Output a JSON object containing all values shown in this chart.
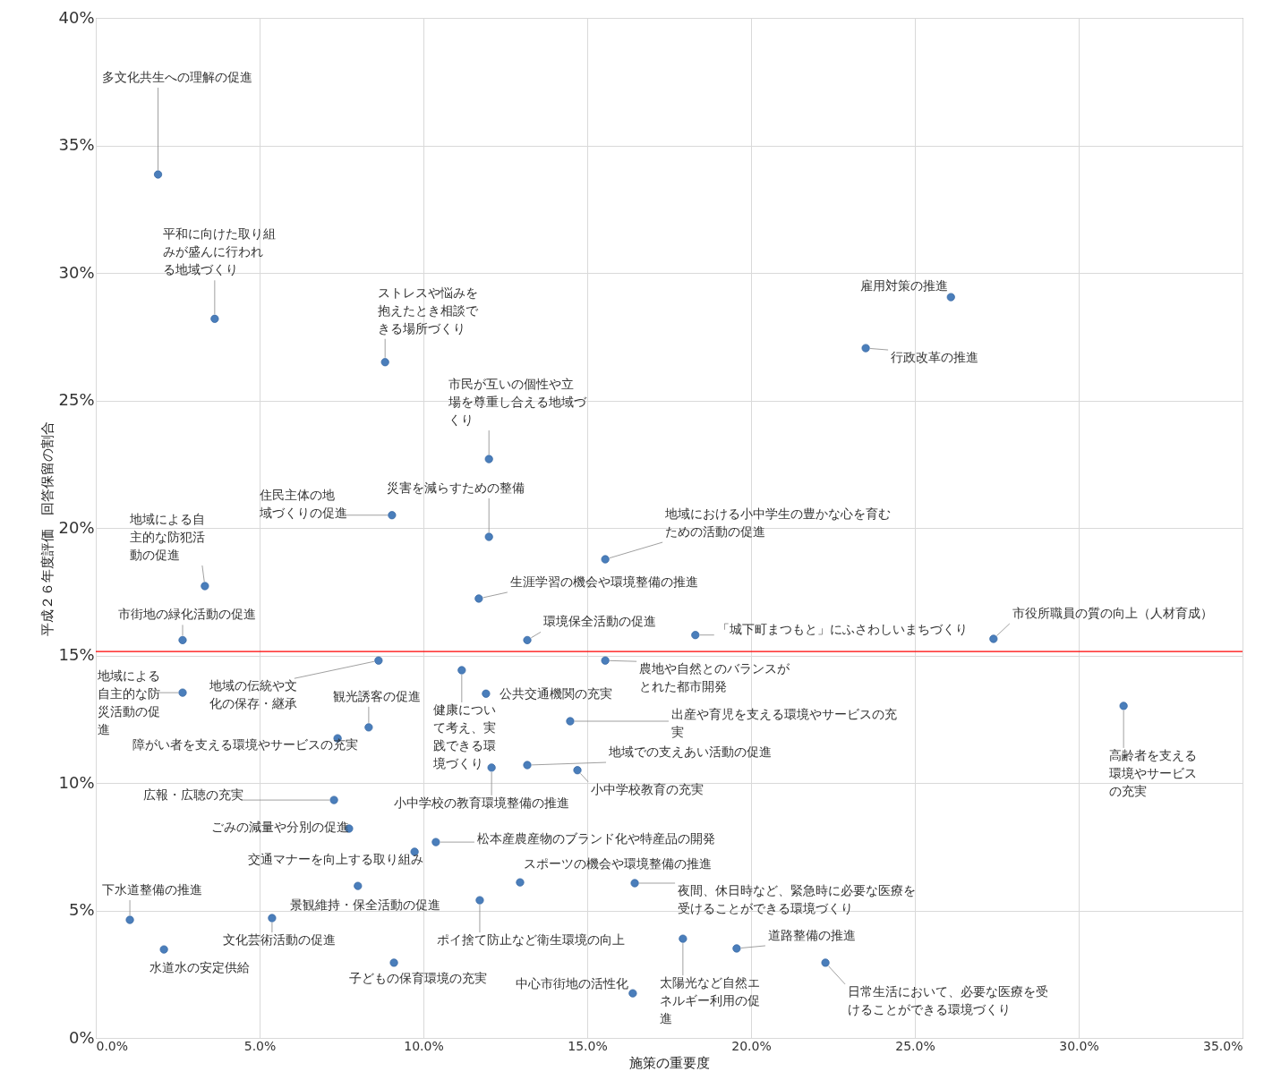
{
  "chart_data": {
    "type": "scatter",
    "xlabel": "施策の重要度",
    "ylabel": "平成２６年度評価　回答保留の割合",
    "xlim": [
      0,
      35
    ],
    "ylim": [
      0,
      40
    ],
    "xticks": [
      {
        "value": 0,
        "label": "0.0%"
      },
      {
        "value": 5,
        "label": "5.0%"
      },
      {
        "value": 10,
        "label": "10.0%"
      },
      {
        "value": 15,
        "label": "15.0%"
      },
      {
        "value": 20,
        "label": "20.0%"
      },
      {
        "value": 25,
        "label": "25.0%"
      },
      {
        "value": 30,
        "label": "30.0%"
      },
      {
        "value": 35,
        "label": "35.0%"
      }
    ],
    "yticks": [
      {
        "value": 0,
        "label": "0%"
      },
      {
        "value": 5,
        "label": "5%"
      },
      {
        "value": 10,
        "label": "10%"
      },
      {
        "value": 15,
        "label": "15%"
      },
      {
        "value": 20,
        "label": "20%"
      },
      {
        "value": 25,
        "label": "25%"
      },
      {
        "value": 30,
        "label": "30%"
      },
      {
        "value": 35,
        "label": "35%"
      },
      {
        "value": 40,
        "label": "40%"
      }
    ],
    "grid": true,
    "marker": "circle",
    "series": [
      {
        "color": "#4a7ebb",
        "x": [
          1.9,
          3.63,
          8.83,
          12.0,
          26.1,
          23.5,
          9.04,
          12.0,
          15.55,
          3.33,
          11.69,
          2.65,
          13.17,
          18.3,
          27.4,
          2.65,
          8.63,
          8.33,
          11.17,
          11.91,
          15.55,
          14.48,
          31.37,
          7.38,
          13.17,
          12.08,
          14.7,
          7.27,
          7.73,
          10.38,
          9.73,
          12.95,
          16.45,
          1.04,
          8.0,
          5.38,
          11.72,
          2.08,
          9.1,
          17.92,
          19.56,
          16.39,
          22.27
        ],
        "values": [
          33.86,
          28.2,
          26.5,
          22.7,
          29.05,
          27.05,
          20.5,
          19.65,
          18.77,
          17.72,
          17.23,
          15.6,
          15.6,
          15.8,
          15.65,
          13.54,
          14.8,
          12.18,
          14.42,
          13.5,
          14.8,
          12.42,
          13.02,
          11.75,
          10.7,
          10.6,
          10.5,
          9.33,
          8.21,
          7.68,
          7.3,
          6.1,
          6.07,
          4.63,
          5.96,
          4.7,
          5.4,
          3.47,
          2.95,
          3.89,
          3.51,
          1.75,
          2.95
        ]
      }
    ],
    "ref_lines": [
      {
        "axis": "y",
        "value": 15.15,
        "color": "#ff0000"
      }
    ],
    "annotations": [
      {
        "text": "多文化共生への理解の促進",
        "x": 1.9,
        "y": 33.86
      },
      {
        "text": "平和に向けた取り組みが盛んに行われる地域づくり",
        "x": 3.63,
        "y": 28.2
      },
      {
        "text": "ストレスや悩みを抱えたとき相談できる場所づくり",
        "x": 8.83,
        "y": 26.5
      },
      {
        "text": "市民が互いの個性や立場を尊重し合える地域づくり",
        "x": 12.0,
        "y": 22.7
      },
      {
        "text": "雇用対策の推進",
        "x": 26.1,
        "y": 29.05
      },
      {
        "text": "行政改革の推進",
        "x": 23.5,
        "y": 27.05
      },
      {
        "text": "住民主体の地域づくりの促進",
        "x": 9.04,
        "y": 20.5
      },
      {
        "text": "災害を減らすための整備",
        "x": 12.0,
        "y": 19.65
      },
      {
        "text": "地域における小中学生の豊かな心を育むための活動の促進",
        "x": 15.55,
        "y": 18.77
      },
      {
        "text": "地域による自主的な防犯活動の促進",
        "x": 3.33,
        "y": 17.72
      },
      {
        "text": "生涯学習の機会や環境整備の推進",
        "x": 11.69,
        "y": 17.23
      },
      {
        "text": "市街地の緑化活動の促進",
        "x": 2.65,
        "y": 15.6
      },
      {
        "text": "環境保全活動の促進",
        "x": 13.17,
        "y": 15.6
      },
      {
        "text": "「城下町まつもと」にふさわしいまちづくり",
        "x": 18.3,
        "y": 15.8
      },
      {
        "text": "市役所職員の質の向上（人材育成）",
        "x": 27.4,
        "y": 15.65
      },
      {
        "text": "地域による自主的な防災活動の促進",
        "x": 2.65,
        "y": 13.54
      },
      {
        "text": "地域の伝統や文化の保存・継承",
        "x": 8.63,
        "y": 14.8
      },
      {
        "text": "観光誘客の促進",
        "x": 8.33,
        "y": 12.18
      },
      {
        "text": "健康について考え、実践できる環境づくり",
        "x": 11.17,
        "y": 14.42
      },
      {
        "text": "公共交通機関の充実",
        "x": 11.91,
        "y": 13.5
      },
      {
        "text": "農地や自然とのバランスがとれた都市開発",
        "x": 15.55,
        "y": 14.8
      },
      {
        "text": "出産や育児を支える環境やサービスの充実",
        "x": 14.48,
        "y": 12.42
      },
      {
        "text": "高齢者を支える環境やサービスの充実",
        "x": 31.37,
        "y": 13.02
      },
      {
        "text": "障がい者を支える環境やサービスの充実",
        "x": 7.38,
        "y": 11.75
      },
      {
        "text": "地域での支えあい活動の促進",
        "x": 13.17,
        "y": 10.7
      },
      {
        "text": "小中学校の教育環境整備の推進",
        "x": 12.08,
        "y": 10.6
      },
      {
        "text": "小中学校教育の充実",
        "x": 14.7,
        "y": 10.5
      },
      {
        "text": "広報・広聴の充実",
        "x": 7.27,
        "y": 9.33
      },
      {
        "text": "ごみの減量や分別の促進",
        "x": 7.73,
        "y": 8.21
      },
      {
        "text": "松本産農産物のブランド化や特産品の開発",
        "x": 10.38,
        "y": 7.68
      },
      {
        "text": "交通マナーを向上する取り組み",
        "x": 9.73,
        "y": 7.3
      },
      {
        "text": "スポーツの機会や環境整備の推進",
        "x": 12.95,
        "y": 6.1
      },
      {
        "text": "夜間、休日時など、緊急時に必要な医療を受けることができる環境づくり",
        "x": 16.45,
        "y": 6.07
      },
      {
        "text": "下水道整備の推進",
        "x": 1.04,
        "y": 4.63
      },
      {
        "text": "景観維持・保全活動の促進",
        "x": 8.0,
        "y": 5.96
      },
      {
        "text": "文化芸術活動の促進",
        "x": 5.38,
        "y": 4.7
      },
      {
        "text": "ポイ捨て防止など衛生環境の向上",
        "x": 11.72,
        "y": 5.4
      },
      {
        "text": "水道水の安定供給",
        "x": 2.08,
        "y": 3.47
      },
      {
        "text": "子どもの保育環境の充実",
        "x": 9.1,
        "y": 2.95
      },
      {
        "text": "太陽光など自然エネルギー利用の促進",
        "x": 17.92,
        "y": 3.89
      },
      {
        "text": "道路整備の推進",
        "x": 19.56,
        "y": 3.51
      },
      {
        "text": "中心市街地の活性化",
        "x": 16.39,
        "y": 1.75
      },
      {
        "text": "日常生活において、必要な医療を受けることができる環境づくり",
        "x": 22.27,
        "y": 2.95
      }
    ]
  }
}
